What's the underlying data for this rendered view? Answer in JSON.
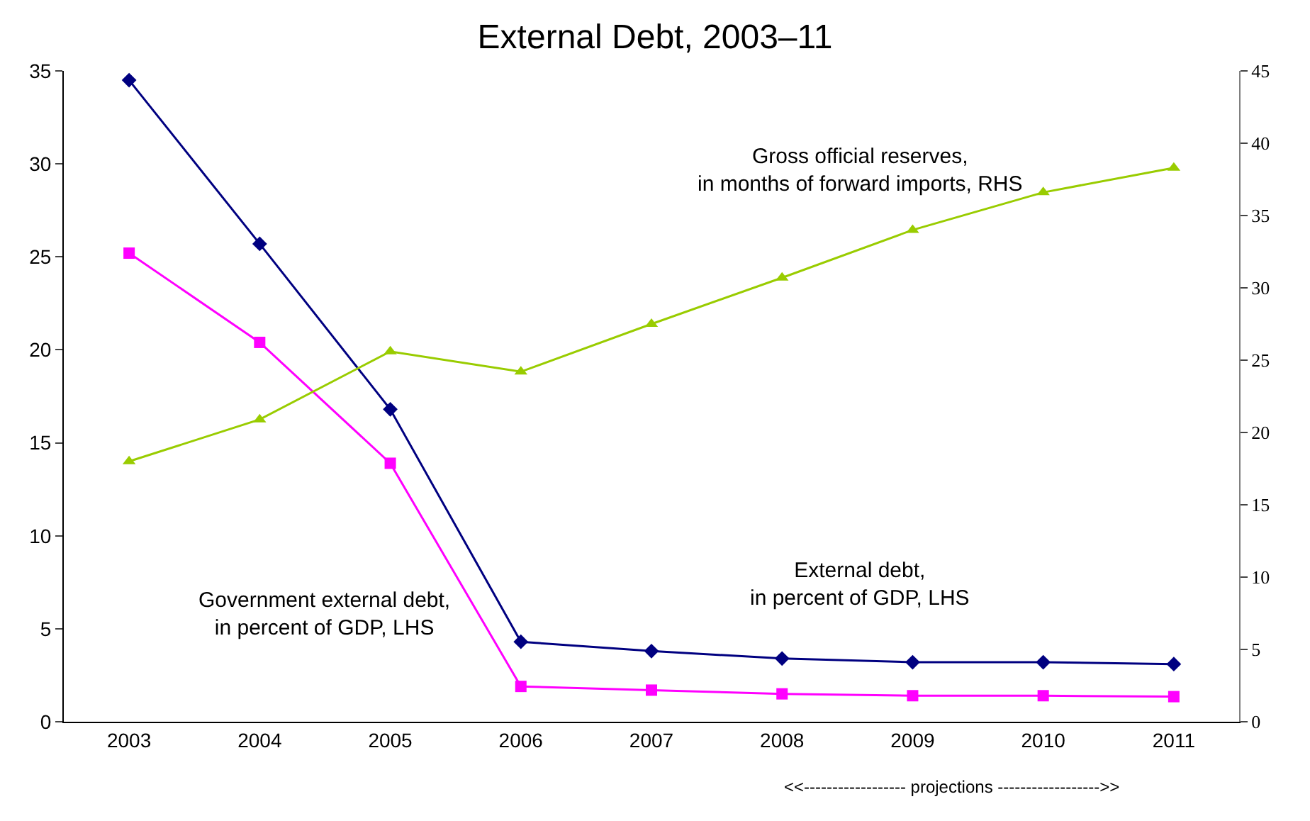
{
  "chart_data": {
    "type": "line",
    "title": "External Debt, 2003–11",
    "categories": [
      "2003",
      "2004",
      "2005",
      "2006",
      "2007",
      "2008",
      "2009",
      "2010",
      "2011"
    ],
    "series": [
      {
        "name": "External debt,\nin percent of GDP, LHS",
        "color": "#000080",
        "marker": "diamond",
        "values": [
          34.5,
          25.7,
          16.8,
          4.3,
          3.8,
          3.4,
          3.2,
          3.2,
          3.1
        ]
      },
      {
        "name": "Government external debt,\nin percent of GDP, LHS",
        "color": "#ff00ff",
        "marker": "square",
        "values": [
          25.2,
          20.4,
          13.9,
          1.9,
          1.7,
          1.5,
          1.4,
          1.4,
          1.35
        ]
      },
      {
        "name": "Gross official reserves,\nin months of forward imports, RHS",
        "color": "#99cc00",
        "marker": "triangle",
        "axis": "y2",
        "values": [
          18.0,
          20.9,
          25.6,
          24.2,
          27.5,
          30.7,
          34.0,
          36.6,
          38.3
        ]
      }
    ],
    "ylim": [
      0,
      35
    ],
    "yticks": [
      0,
      5,
      10,
      15,
      20,
      25,
      30,
      35
    ],
    "y2lim": [
      0,
      45
    ],
    "y2ticks": [
      0,
      5,
      10,
      15,
      20,
      25,
      30,
      35,
      40,
      45
    ],
    "annotations": [
      "<<------------------ projections ------------------>>"
    ],
    "legend": false,
    "line_style": "solid"
  }
}
